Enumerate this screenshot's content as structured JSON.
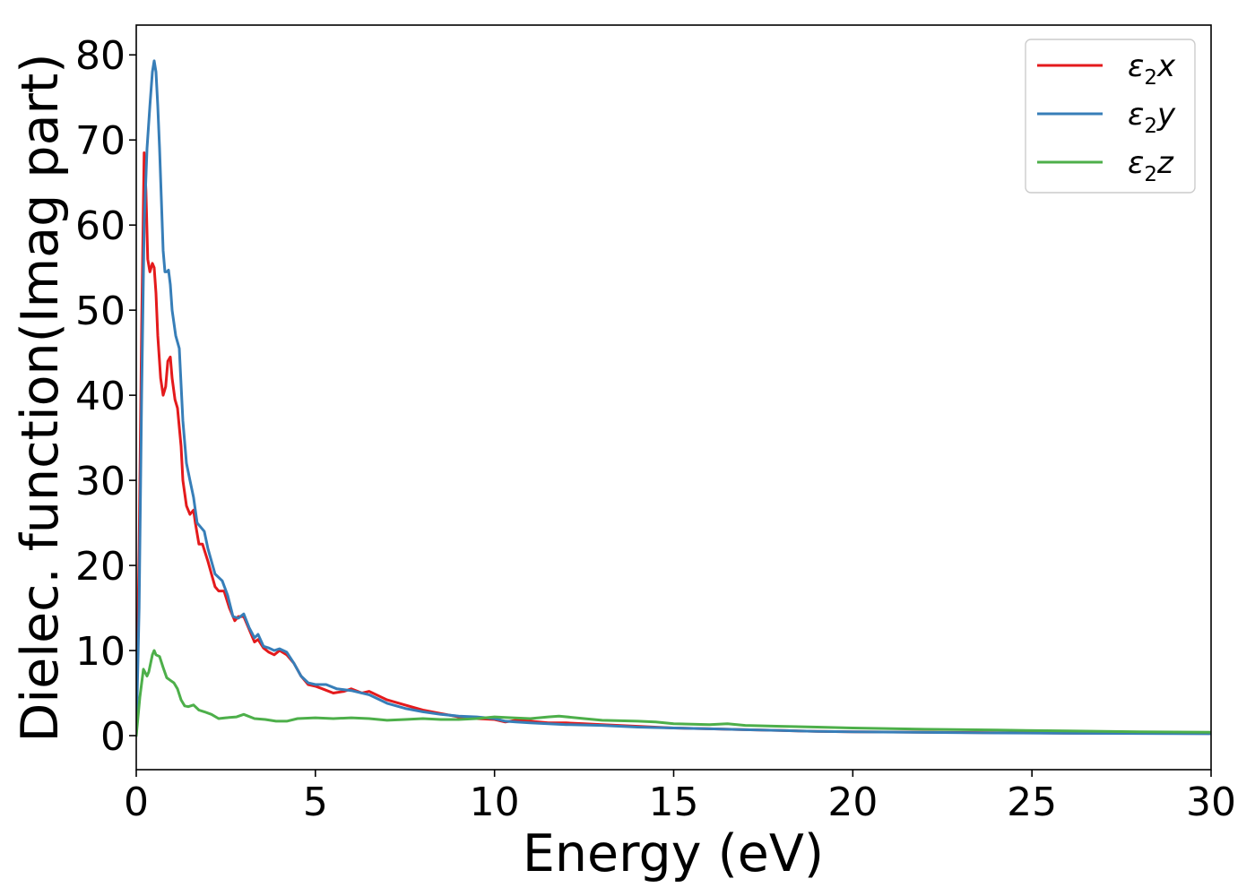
{
  "chart_data": {
    "type": "line",
    "title": "",
    "xlabel": "Energy (eV)",
    "ylabel": "Dielec. function(Imag part)",
    "xlim": [
      0,
      30
    ],
    "ylim": [
      -4,
      83.5
    ],
    "xticks": [
      0,
      5,
      10,
      15,
      20,
      25,
      30
    ],
    "yticks": [
      0,
      10,
      20,
      30,
      40,
      50,
      60,
      70,
      80
    ],
    "grid": false,
    "legend_position": "top-right",
    "series": [
      {
        "name": "ε2x",
        "name_base": "ε",
        "name_sub": "2",
        "name_tail": "x",
        "color": "#e41a1c",
        "x": [
          0,
          0.08,
          0.15,
          0.22,
          0.27,
          0.32,
          0.38,
          0.45,
          0.5,
          0.55,
          0.6,
          0.68,
          0.75,
          0.82,
          0.88,
          0.95,
          1.0,
          1.08,
          1.15,
          1.25,
          1.3,
          1.4,
          1.5,
          1.6,
          1.65,
          1.75,
          1.85,
          2.0,
          2.1,
          2.2,
          2.3,
          2.45,
          2.6,
          2.75,
          2.85,
          3.0,
          3.15,
          3.3,
          3.4,
          3.55,
          3.7,
          3.85,
          4.0,
          4.2,
          4.4,
          4.6,
          4.8,
          5.0,
          5.2,
          5.5,
          5.8,
          6.0,
          6.3,
          6.5,
          6.8,
          7.0,
          7.5,
          8.0,
          8.5,
          9.0,
          9.5,
          10.0,
          10.3,
          10.6,
          11.0,
          11.5,
          12.0,
          12.5,
          13.0,
          14.0,
          15.0,
          16.0,
          17.0,
          18.0,
          19.0,
          20.0,
          22.0,
          24.0,
          26.0,
          28.0,
          30.0
        ],
        "y": [
          0,
          22,
          48,
          68.5,
          64,
          56,
          54.5,
          55.5,
          55,
          52,
          47,
          42,
          40,
          41,
          44,
          44.5,
          42,
          39.5,
          38.5,
          34,
          30,
          27,
          26,
          26.5,
          25,
          22.5,
          22.5,
          20.5,
          19,
          17.5,
          17,
          17,
          15,
          13.5,
          14,
          14,
          12.5,
          11,
          11.3,
          10.3,
          9.8,
          9.5,
          10,
          9.5,
          8.5,
          7,
          6,
          5.8,
          5.5,
          5.0,
          5.2,
          5.5,
          5.0,
          5.2,
          4.6,
          4.2,
          3.6,
          3.0,
          2.6,
          2.2,
          2.0,
          1.9,
          1.6,
          1.8,
          1.7,
          1.5,
          1.5,
          1.4,
          1.3,
          1.1,
          0.9,
          0.8,
          0.7,
          0.6,
          0.5,
          0.45,
          0.4,
          0.35,
          0.3,
          0.28,
          0.25
        ]
      },
      {
        "name": "ε2y",
        "name_base": "ε",
        "name_sub": "2",
        "name_tail": "y",
        "color": "#377eb8",
        "x": [
          0,
          0.08,
          0.15,
          0.22,
          0.3,
          0.38,
          0.45,
          0.5,
          0.55,
          0.6,
          0.65,
          0.7,
          0.75,
          0.8,
          0.85,
          0.9,
          0.95,
          1.0,
          1.1,
          1.2,
          1.3,
          1.4,
          1.5,
          1.6,
          1.7,
          1.8,
          1.9,
          2.0,
          2.2,
          2.4,
          2.55,
          2.7,
          2.85,
          3.0,
          3.15,
          3.3,
          3.4,
          3.55,
          3.7,
          3.85,
          4.0,
          4.2,
          4.4,
          4.6,
          4.8,
          5.0,
          5.3,
          5.6,
          6.0,
          6.5,
          7.0,
          7.5,
          8.0,
          8.5,
          9.0,
          9.5,
          10.0,
          10.3,
          10.6,
          11.0,
          11.5,
          12.0,
          13.0,
          14.0,
          15.0,
          16.0,
          17.0,
          18.0,
          19.0,
          20.0,
          22.0,
          24.0,
          26.0,
          28.0,
          30.0
        ],
        "y": [
          0,
          15,
          40,
          60,
          69,
          74,
          78,
          79.3,
          78,
          74,
          69,
          63,
          57,
          54.5,
          54.5,
          54.7,
          53,
          50,
          47,
          45.5,
          37,
          32,
          30,
          28,
          25,
          24.5,
          24,
          22,
          19,
          18.2,
          16.5,
          14,
          13.8,
          14.3,
          12.7,
          11.5,
          11.9,
          10.5,
          10.3,
          10.0,
          10.2,
          9.8,
          8.5,
          7.0,
          6.2,
          6.0,
          6.0,
          5.5,
          5.3,
          4.8,
          3.8,
          3.2,
          2.8,
          2.5,
          2.3,
          2.2,
          2.0,
          1.7,
          1.6,
          1.5,
          1.4,
          1.3,
          1.2,
          1.0,
          0.9,
          0.8,
          0.7,
          0.6,
          0.5,
          0.45,
          0.38,
          0.32,
          0.28,
          0.25,
          0.22
        ]
      },
      {
        "name": "ε2z",
        "name_base": "ε",
        "name_sub": "2",
        "name_tail": "z",
        "color": "#4daf4a",
        "x": [
          0,
          0.1,
          0.2,
          0.3,
          0.35,
          0.45,
          0.5,
          0.55,
          0.65,
          0.75,
          0.85,
          0.95,
          1.05,
          1.15,
          1.25,
          1.35,
          1.45,
          1.6,
          1.75,
          1.9,
          2.1,
          2.3,
          2.5,
          2.8,
          3.0,
          3.3,
          3.6,
          3.9,
          4.2,
          4.5,
          5.0,
          5.5,
          6.0,
          6.5,
          7.0,
          7.5,
          8.0,
          8.5,
          9.0,
          9.5,
          10.0,
          10.5,
          11.0,
          11.5,
          11.8,
          12.5,
          13.0,
          14.0,
          14.5,
          15.0,
          16.0,
          16.5,
          17.0,
          18.0,
          19.0,
          20.0,
          22.0,
          24.0,
          26.0,
          28.0,
          30.0
        ],
        "y": [
          0,
          4.5,
          7.8,
          7.0,
          7.5,
          9.5,
          10,
          9.5,
          9.3,
          8.0,
          6.8,
          6.5,
          6.2,
          5.5,
          4.2,
          3.5,
          3.4,
          3.6,
          3.0,
          2.8,
          2.5,
          2.0,
          2.1,
          2.2,
          2.5,
          2.0,
          1.9,
          1.7,
          1.7,
          2.0,
          2.1,
          2.0,
          2.1,
          2.0,
          1.8,
          1.9,
          2.0,
          1.9,
          1.9,
          2.0,
          2.2,
          2.1,
          2.0,
          2.2,
          2.3,
          2.0,
          1.8,
          1.7,
          1.6,
          1.4,
          1.3,
          1.4,
          1.2,
          1.1,
          1.0,
          0.9,
          0.75,
          0.65,
          0.55,
          0.45,
          0.4
        ]
      }
    ]
  }
}
